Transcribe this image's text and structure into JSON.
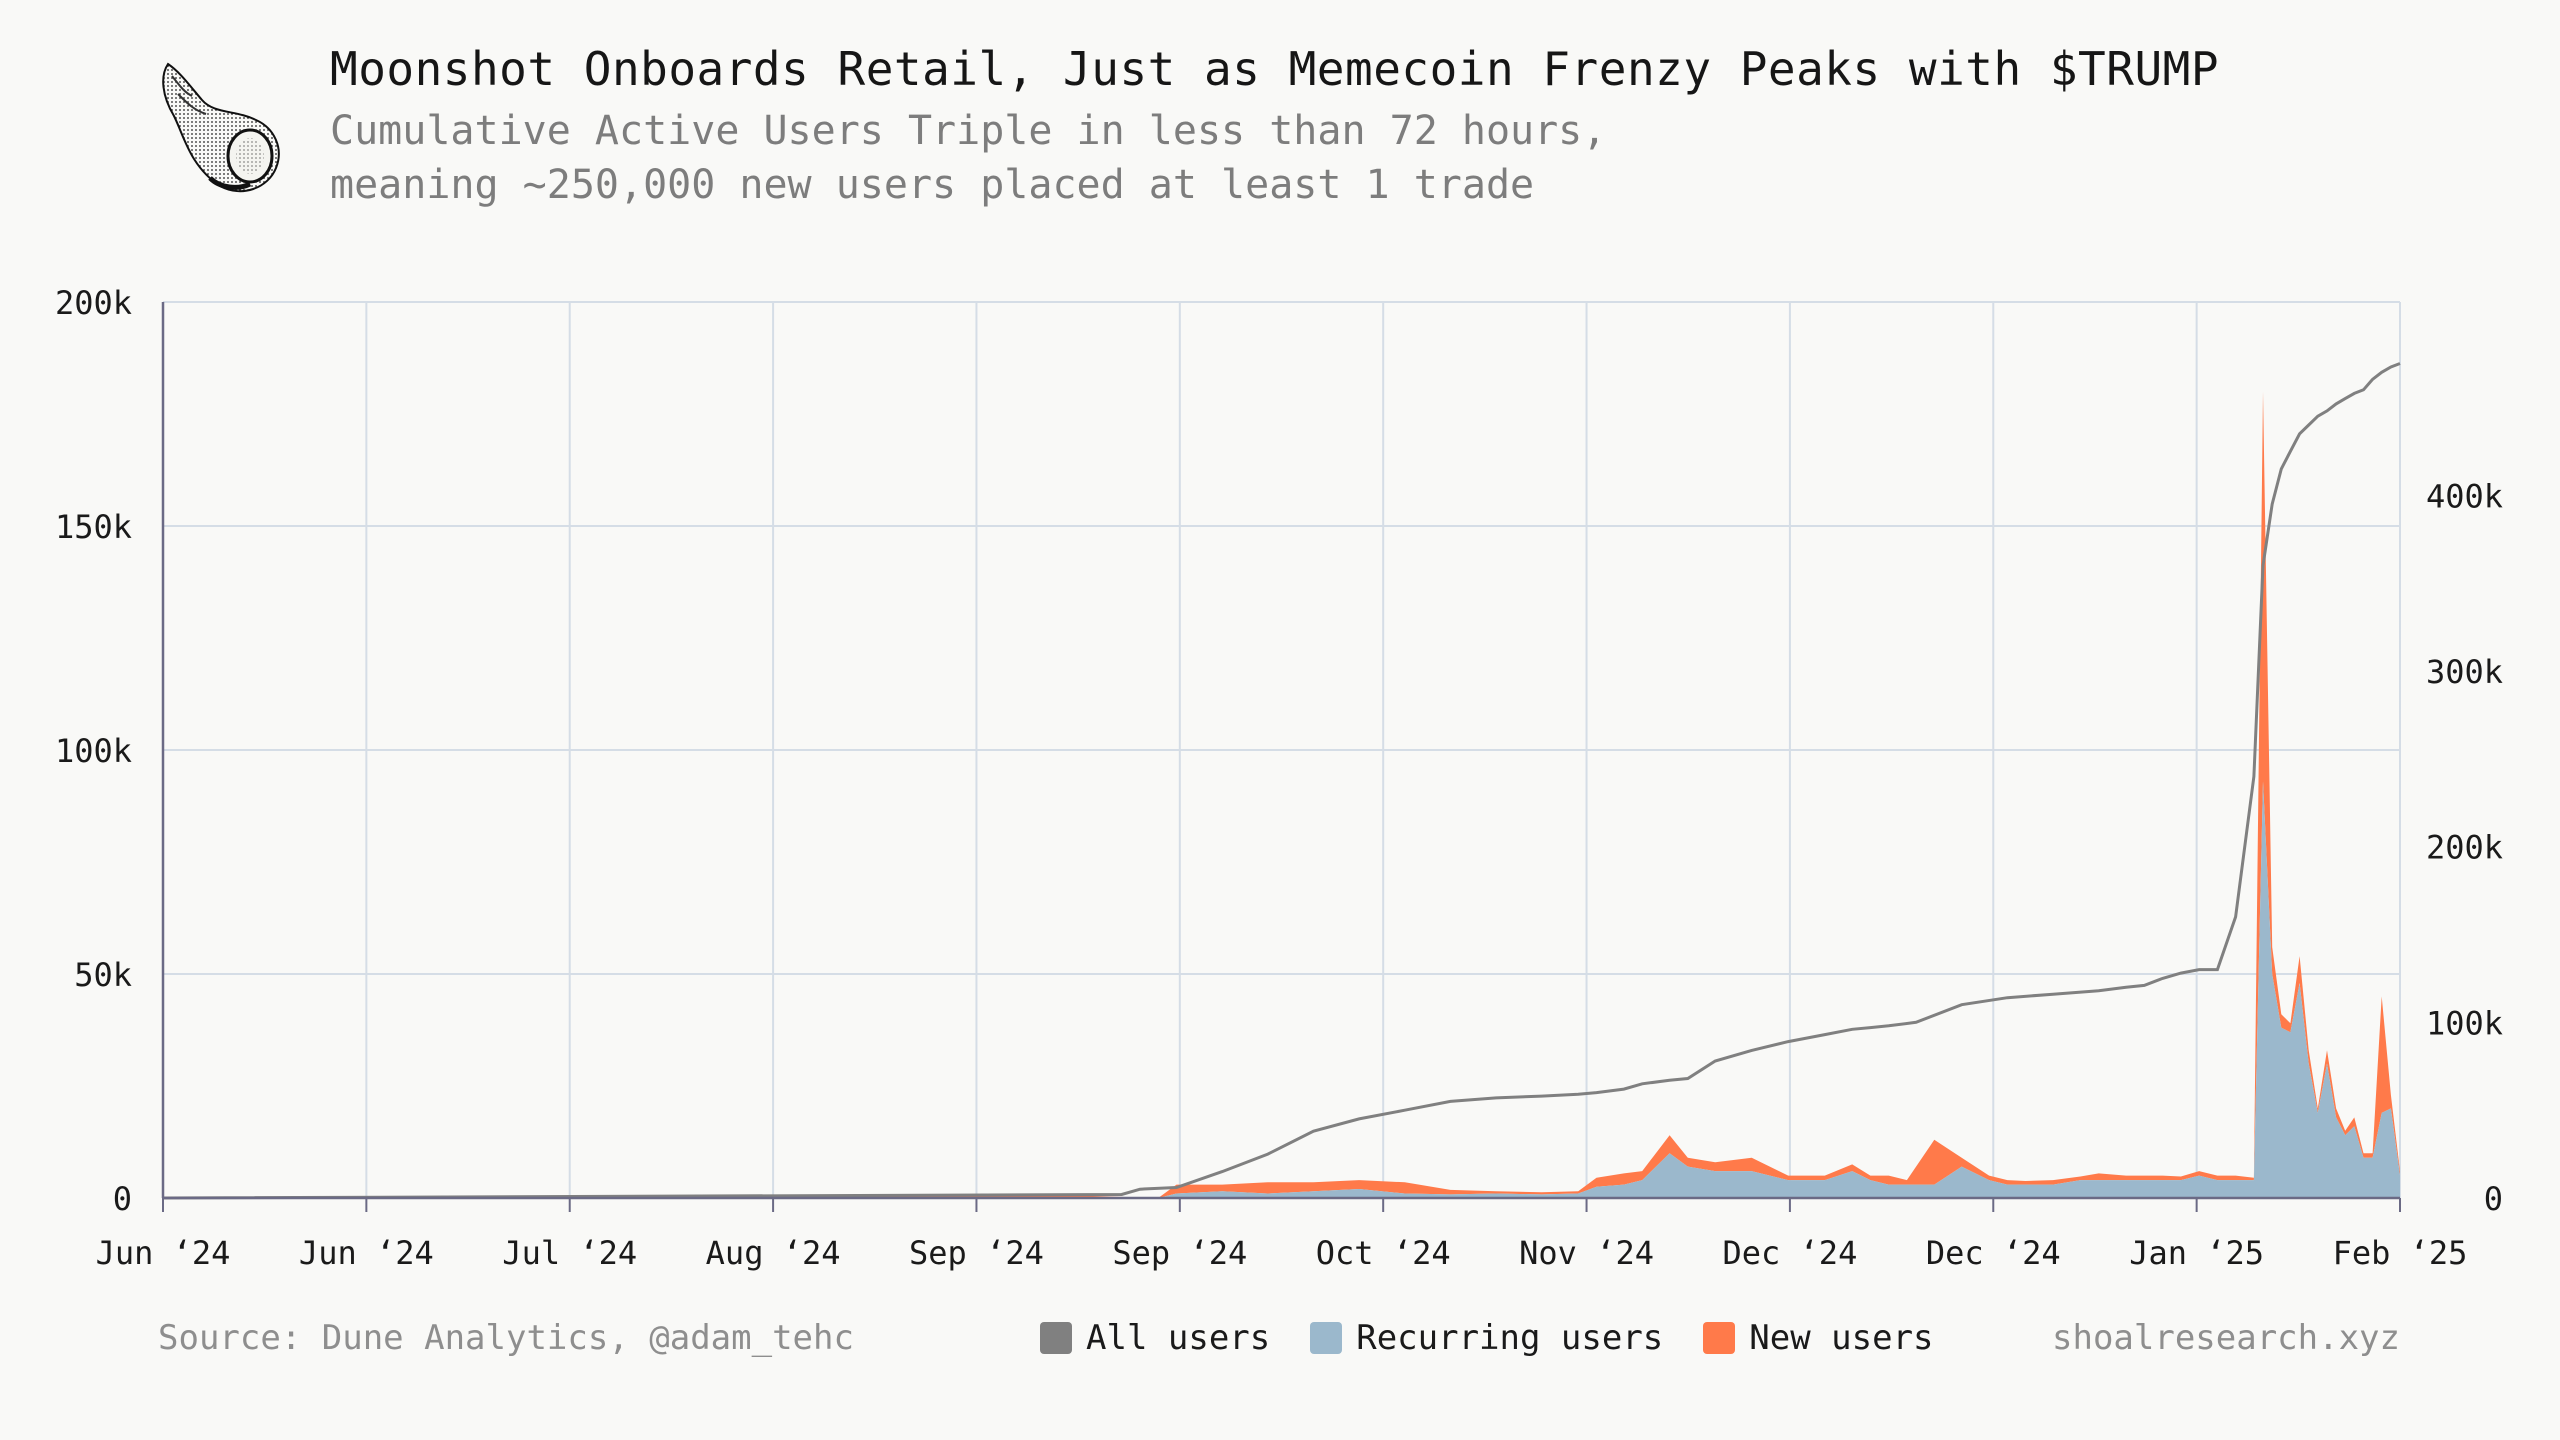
{
  "header": {
    "title": "Moonshot Onboards Retail, Just as Memecoin Frenzy Peaks with $TRUMP",
    "subtitle_line1": "Cumulative Active Users Triple in less than 72 hours,",
    "subtitle_line2": "meaning ~250,000 new users placed at least 1 trade"
  },
  "footer": {
    "source": "Source: Dune Analytics, @adam_tehc",
    "site": "shoalresearch.xyz"
  },
  "colors": {
    "all_users": "#808080",
    "recurring_users": "#9bb8cc",
    "new_users": "#ff7a4a",
    "grid": "#d5dde6",
    "logo": "shell-icon"
  },
  "chart_data": {
    "type": "area",
    "x_ticks": [
      "Jun ‘24",
      "Jun ‘24",
      "Jul ‘24",
      "Aug ‘24",
      "Sep ‘24",
      "Sep ‘24",
      "Oct ‘24",
      "Nov ‘24",
      "Dec ‘24",
      "Dec ‘24",
      "Jan ‘25",
      "Feb ‘25"
    ],
    "y_left_ticks": [
      "0",
      "50k",
      "100k",
      "150k",
      "200k"
    ],
    "y_left_lim": [
      0,
      200000
    ],
    "y_right_ticks": [
      "0",
      "100k",
      "200k",
      "300k",
      "400k"
    ],
    "y_right_lim": [
      0,
      510000
    ],
    "x_lim": [
      "2024-06-01",
      "2025-02-01"
    ],
    "legend": [
      "All users",
      "Recurring users",
      "New users"
    ],
    "legend_position": "bottom-center",
    "grid": true,
    "series": [
      {
        "name": "Recurring users",
        "axis": "left",
        "dates": [
          "2024-06-01",
          "2024-09-10",
          "2024-09-18",
          "2024-09-20",
          "2024-09-25",
          "2024-09-30",
          "2024-10-05",
          "2024-10-10",
          "2024-10-15",
          "2024-10-20",
          "2024-10-25",
          "2024-10-30",
          "2024-11-03",
          "2024-11-05",
          "2024-11-08",
          "2024-11-10",
          "2024-11-13",
          "2024-11-15",
          "2024-11-18",
          "2024-11-22",
          "2024-11-26",
          "2024-11-30",
          "2024-12-03",
          "2024-12-05",
          "2024-12-07",
          "2024-12-09",
          "2024-12-12",
          "2024-12-15",
          "2024-12-18",
          "2024-12-20",
          "2024-12-22",
          "2024-12-25",
          "2024-12-28",
          "2024-12-30",
          "2025-01-02",
          "2025-01-04",
          "2025-01-06",
          "2025-01-08",
          "2025-01-10",
          "2025-01-12",
          "2025-01-14",
          "2025-01-16",
          "2025-01-17",
          "2025-01-18",
          "2025-01-19",
          "2025-01-20",
          "2025-01-21",
          "2025-01-22",
          "2025-01-23",
          "2025-01-24",
          "2025-01-25",
          "2025-01-26",
          "2025-01-27",
          "2025-01-28",
          "2025-01-29",
          "2025-01-30",
          "2025-01-31",
          "2025-02-01"
        ],
        "values": [
          0,
          0,
          0,
          1000,
          1500,
          1000,
          1500,
          2000,
          1000,
          800,
          1000,
          800,
          1000,
          2500,
          3000,
          4000,
          10000,
          7000,
          6000,
          6000,
          4000,
          4000,
          6000,
          4000,
          3000,
          3000,
          3000,
          7000,
          4000,
          3000,
          3000,
          3000,
          4000,
          4000,
          4000,
          4000,
          4000,
          4000,
          5000,
          4000,
          4000,
          4000,
          93000,
          50000,
          38000,
          37000,
          48000,
          30000,
          19000,
          30000,
          18000,
          14000,
          16000,
          9000,
          9000,
          19000,
          20000,
          5000
        ]
      },
      {
        "name": "New users",
        "axis": "left",
        "dates": [
          "2024-06-01",
          "2024-09-10",
          "2024-09-18",
          "2024-09-20",
          "2024-09-25",
          "2024-09-30",
          "2024-10-05",
          "2024-10-10",
          "2024-10-15",
          "2024-10-20",
          "2024-10-25",
          "2024-10-30",
          "2024-11-03",
          "2024-11-05",
          "2024-11-08",
          "2024-11-10",
          "2024-11-13",
          "2024-11-15",
          "2024-11-18",
          "2024-11-22",
          "2024-11-26",
          "2024-11-30",
          "2024-12-03",
          "2024-12-05",
          "2024-12-07",
          "2024-12-09",
          "2024-12-12",
          "2024-12-15",
          "2024-12-18",
          "2024-12-20",
          "2024-12-22",
          "2024-12-25",
          "2024-12-28",
          "2024-12-30",
          "2025-01-02",
          "2025-01-04",
          "2025-01-06",
          "2025-01-08",
          "2025-01-10",
          "2025-01-12",
          "2025-01-14",
          "2025-01-16",
          "2025-01-17",
          "2025-01-18",
          "2025-01-19",
          "2025-01-20",
          "2025-01-21",
          "2025-01-22",
          "2025-01-23",
          "2025-01-24",
          "2025-01-25",
          "2025-01-26",
          "2025-01-27",
          "2025-01-28",
          "2025-01-29",
          "2025-01-30",
          "2025-01-31",
          "2025-02-01"
        ],
        "values": [
          0,
          500,
          0,
          2000,
          1500,
          2500,
          2000,
          2000,
          2500,
          1000,
          500,
          500,
          500,
          2000,
          2500,
          2000,
          4000,
          2000,
          2000,
          3000,
          1000,
          1000,
          1500,
          1000,
          2000,
          1000,
          10000,
          2000,
          1000,
          1000,
          800,
          1000,
          800,
          1500,
          1000,
          1000,
          1000,
          800,
          1000,
          1000,
          1000,
          500,
          87000,
          6000,
          3000,
          2000,
          6000,
          3000,
          1000,
          3000,
          2000,
          1000,
          2000,
          1000,
          1000,
          26000,
          3000,
          1000
        ]
      },
      {
        "name": "All users",
        "axis": "right",
        "dates": [
          "2024-06-01",
          "2024-09-14",
          "2024-09-16",
          "2024-09-20",
          "2024-09-25",
          "2024-09-30",
          "2024-10-05",
          "2024-10-10",
          "2024-10-15",
          "2024-10-20",
          "2024-10-25",
          "2024-10-30",
          "2024-11-03",
          "2024-11-05",
          "2024-11-08",
          "2024-11-10",
          "2024-11-13",
          "2024-11-15",
          "2024-11-18",
          "2024-11-22",
          "2024-11-26",
          "2024-11-30",
          "2024-12-03",
          "2024-12-05",
          "2024-12-07",
          "2024-12-10",
          "2024-12-15",
          "2024-12-20",
          "2024-12-25",
          "2024-12-30",
          "2025-01-02",
          "2025-01-04",
          "2025-01-06",
          "2025-01-08",
          "2025-01-10",
          "2025-01-12",
          "2025-01-14",
          "2025-01-16",
          "2025-01-17",
          "2025-01-18",
          "2025-01-19",
          "2025-01-20",
          "2025-01-21",
          "2025-01-22",
          "2025-01-23",
          "2025-01-24",
          "2025-01-25",
          "2025-01-26",
          "2025-01-27",
          "2025-01-28",
          "2025-01-29",
          "2025-01-30",
          "2025-01-31",
          "2025-02-01"
        ],
        "values": [
          0,
          2000,
          5000,
          6000,
          15000,
          25000,
          38000,
          45000,
          50000,
          55000,
          57000,
          58000,
          59000,
          60000,
          62000,
          65000,
          67000,
          68000,
          78000,
          84000,
          89000,
          93000,
          96000,
          97000,
          98000,
          100000,
          110000,
          114000,
          116000,
          118000,
          120000,
          121000,
          125000,
          128000,
          130000,
          130000,
          160000,
          240000,
          360000,
          395000,
          415000,
          425000,
          435000,
          440000,
          445000,
          448000,
          452000,
          455000,
          458000,
          460000,
          466000,
          470000,
          473000,
          475000
        ]
      }
    ]
  }
}
